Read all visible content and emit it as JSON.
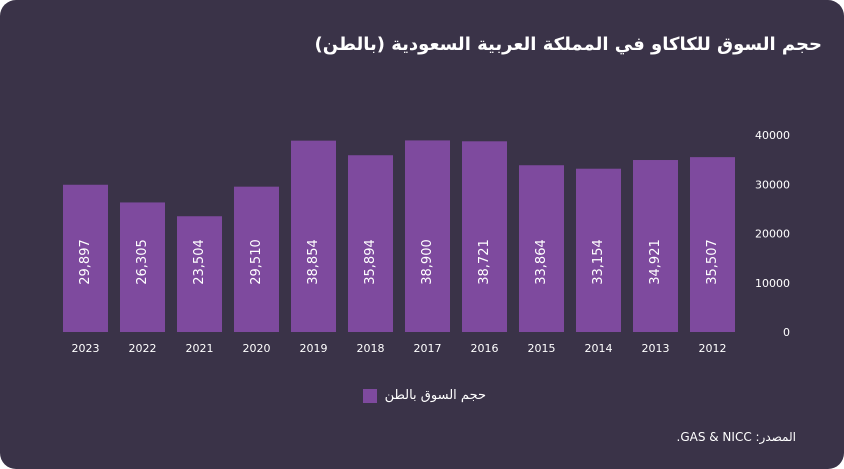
{
  "title": "حجم السوق للكاكاو في المملكة العربية السعودية (بالطن)",
  "source": "المصدر: GAS & NICC.",
  "colors": {
    "background": "#3a3348",
    "bar": "#7e4a9e",
    "text": "#ffffff",
    "axis": "#cfc9d8"
  },
  "chart_data": {
    "type": "bar",
    "categories": [
      "2023",
      "2022",
      "2021",
      "2020",
      "2019",
      "2018",
      "2017",
      "2016",
      "2015",
      "2014",
      "2013",
      "2012"
    ],
    "series": [
      {
        "name": "حجم السوق بالطن",
        "values": [
          29897,
          26305,
          23504,
          29510,
          38854,
          35894,
          38900,
          38721,
          33864,
          33154,
          34921,
          35507
        ],
        "data_labels": [
          "29,897",
          "26,305",
          "23,504",
          "29,510",
          "38,854",
          "35,894",
          "38,900",
          "38,721",
          "33,864",
          "33,154",
          "34,921",
          "35,507"
        ]
      }
    ],
    "yticks": [
      "0",
      "10000",
      "20000",
      "30000",
      "40000"
    ],
    "ylim": [
      0,
      40000
    ],
    "y_axis_side": "right",
    "legend_position": "bottom",
    "grid": false
  }
}
